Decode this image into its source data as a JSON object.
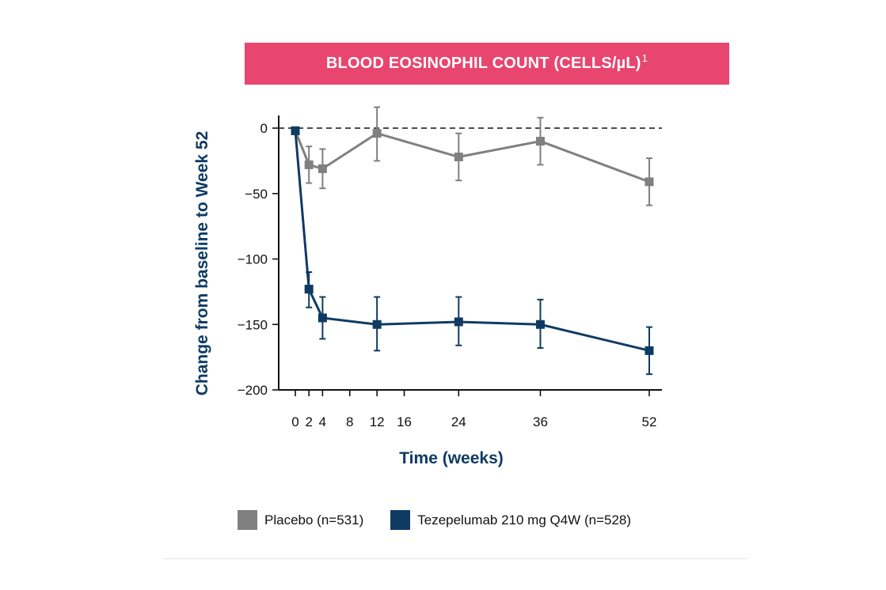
{
  "title": {
    "text": "BLOOD EOSINOPHIL COUNT (CELLS/µL)",
    "superscript": "1"
  },
  "colors": {
    "banner": "#e8456f",
    "axis_title": "#0f3b63"
  },
  "chart_data": {
    "type": "line",
    "title": "BLOOD EOSINOPHIL COUNT (CELLS/µL)",
    "xlabel": "Time (weeks)",
    "ylabel": "Change from baseline to Week 52",
    "xlim": [
      0,
      52
    ],
    "ylim": [
      -200,
      0
    ],
    "x_ticks": [
      0,
      2,
      4,
      8,
      12,
      16,
      24,
      36,
      52
    ],
    "x_tick_labels": [
      "0",
      "2",
      "4",
      "8",
      "12",
      "16",
      "24",
      "36",
      "52"
    ],
    "y_ticks": [
      0,
      -50,
      -100,
      -150,
      -200
    ],
    "y_tick_labels": [
      "0",
      "−50",
      "−100",
      "−150",
      "−200"
    ],
    "reference_line": {
      "y": 0,
      "style": "dashed"
    },
    "grid": false,
    "legend_position": "bottom",
    "series": [
      {
        "name": "Placebo (n=531)",
        "color": "#808080",
        "x": [
          0,
          2,
          4,
          12,
          24,
          36,
          52
        ],
        "y": [
          -2,
          -28,
          -31,
          -4,
          -22,
          -10,
          -41
        ],
        "error_low": [
          -2,
          -42,
          -46,
          -25,
          -40,
          -28,
          -59
        ],
        "error_high": [
          -2,
          -14,
          -16,
          16,
          -4,
          8,
          -23
        ]
      },
      {
        "name": "Tezepelumab 210 mg Q4W (n=528)",
        "color": "#0f3b63",
        "x": [
          0,
          2,
          4,
          12,
          24,
          36,
          52
        ],
        "y": [
          -2,
          -123,
          -145,
          -150,
          -148,
          -150,
          -170
        ],
        "error_low": [
          -2,
          -137,
          -161,
          -170,
          -166,
          -168,
          -188
        ],
        "error_high": [
          -2,
          -110,
          -129,
          -129,
          -129,
          -131,
          -152
        ]
      }
    ]
  }
}
